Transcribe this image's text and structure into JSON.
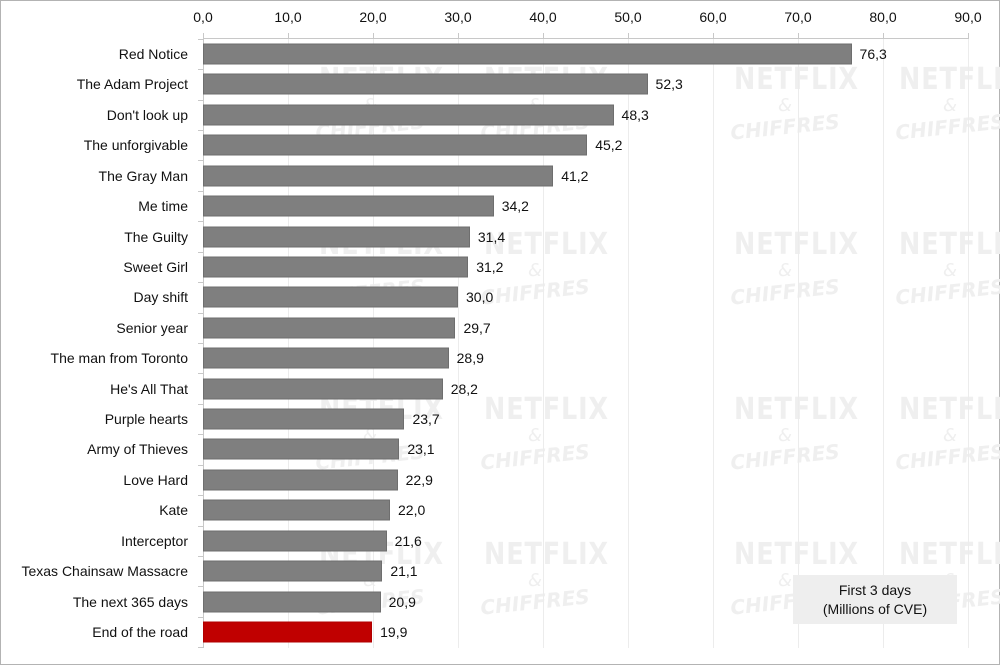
{
  "chart_data": {
    "type": "bar",
    "orientation": "horizontal",
    "title": "",
    "xlabel": "",
    "ylabel": "",
    "xlim": [
      0,
      90
    ],
    "x_ticks": [
      "0,0",
      "10,0",
      "20,0",
      "30,0",
      "40,0",
      "50,0",
      "60,0",
      "70,0",
      "80,0",
      "90,0"
    ],
    "x_axis_position": "top",
    "grid": true,
    "categories": [
      "Red Notice",
      "The Adam Project",
      "Don't look up",
      "The unforgivable",
      "The Gray Man",
      "Me time",
      "The Guilty",
      "Sweet Girl",
      "Day shift",
      "Senior year",
      "The man from Toronto",
      "He's All That",
      "Purple hearts",
      "Army of Thieves",
      "Love Hard",
      "Kate",
      "Interceptor",
      "Texas Chainsaw Massacre",
      "The next 365 days",
      "End of the road"
    ],
    "values": [
      76.3,
      52.3,
      48.3,
      45.2,
      41.2,
      34.2,
      31.4,
      31.2,
      30.0,
      29.7,
      28.9,
      28.2,
      23.7,
      23.1,
      22.9,
      22.0,
      21.6,
      21.1,
      20.9,
      19.9
    ],
    "value_labels": [
      "76,3",
      "52,3",
      "48,3",
      "45,2",
      "41,2",
      "34,2",
      "31,4",
      "31,2",
      "30,0",
      "29,7",
      "28,9",
      "28,2",
      "23,7",
      "23,1",
      "22,9",
      "22,0",
      "21,6",
      "21,1",
      "20,9",
      "19,9"
    ],
    "highlighted_category": "End of the road",
    "colors": {
      "default_bar": "#7f7f7f",
      "highlight_bar": "#c00000",
      "legend_bg": "#eeeeee"
    },
    "legend": {
      "line1": "First 3 days",
      "line2": "(Millions of CVE)",
      "position": "bottom-right"
    },
    "watermark": {
      "line1": "NETFLIX",
      "line2": "&",
      "line3": "CHIFFRES"
    }
  }
}
